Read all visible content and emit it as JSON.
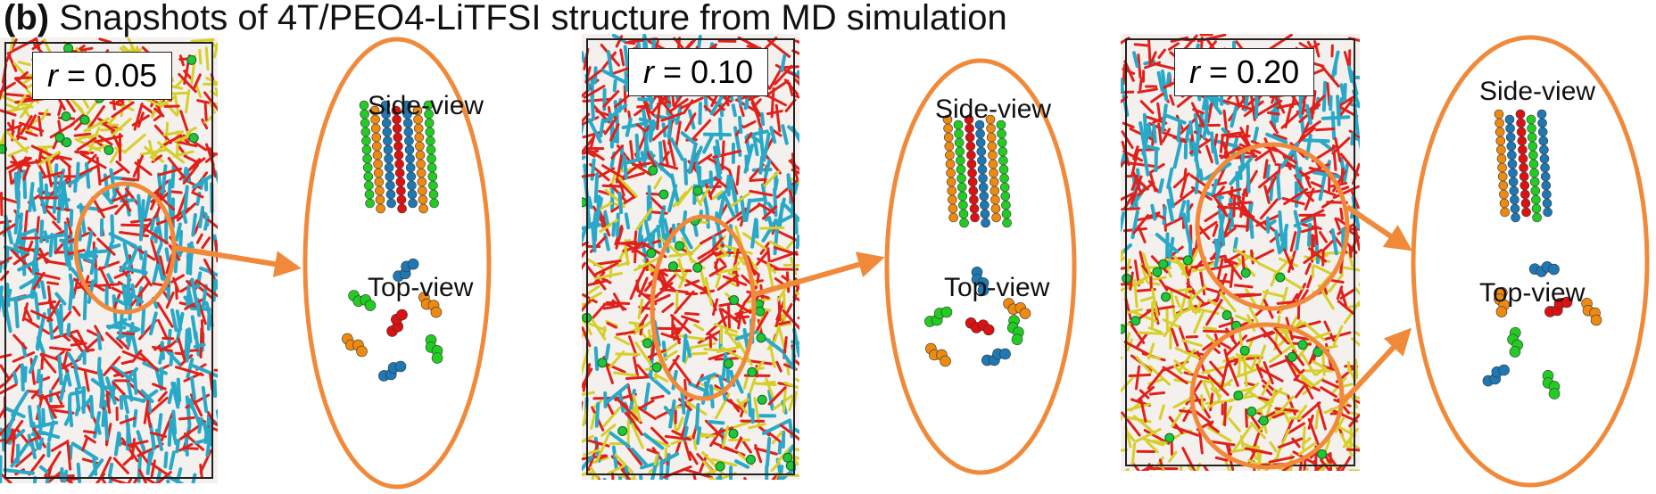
{
  "figure": {
    "label": "(b)",
    "title": "Snapshots of 4T/PEO4-LiTFSI structure from MD simulation"
  },
  "panels": [
    {
      "r_symbol": "r",
      "r_value": "= 0.05",
      "side_view": "Side-view",
      "top_view": "Top-view"
    },
    {
      "r_symbol": "r",
      "r_value": "= 0.10",
      "side_view": "Side-view",
      "top_view": "Top-view"
    },
    {
      "r_symbol": "r",
      "r_value": "= 0.20",
      "side_view": "Side-view",
      "top_view": "Top-view"
    }
  ],
  "colors": {
    "highlight": "#f08a3a",
    "polymer": "#e0201a",
    "thiophene": "#29a9c7",
    "salt": "#d6cf2a",
    "lithium": "#22c43a",
    "mol_green": "#22cc22",
    "mol_orange": "#ee8a10",
    "mol_red": "#dd1111",
    "mol_blue": "#1e78b4"
  }
}
